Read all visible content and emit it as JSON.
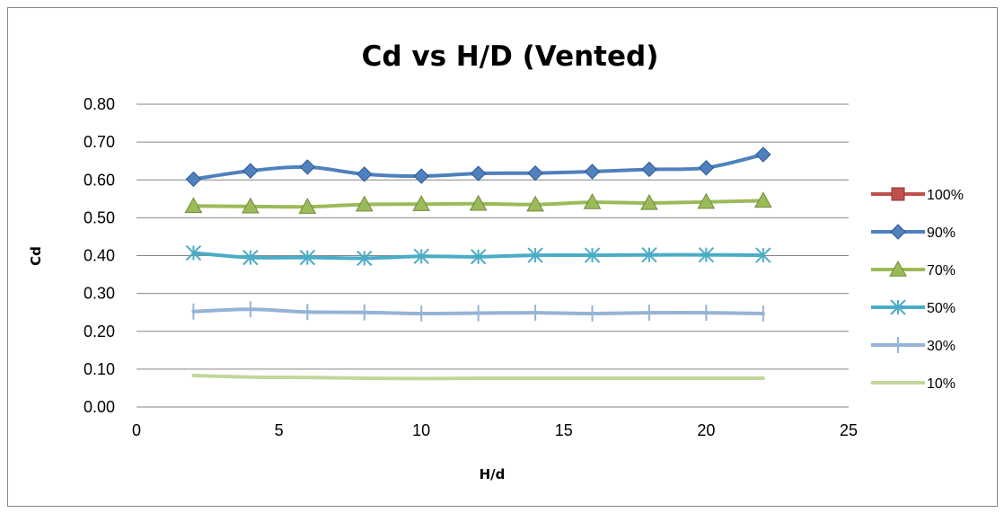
{
  "chart_data": {
    "type": "line",
    "title": "Cd vs H/D (Vented)",
    "xlabel": "H/d",
    "ylabel": "Cd",
    "xlim": [
      0,
      25
    ],
    "ylim": [
      0,
      0.8
    ],
    "xticks": [
      0,
      5,
      10,
      15,
      20,
      25
    ],
    "xtick_labels": [
      "0",
      "5",
      "10",
      "15",
      "20",
      "25"
    ],
    "yticks": [
      0,
      0.1,
      0.2,
      0.3,
      0.4,
      0.5,
      0.6,
      0.7,
      0.8
    ],
    "ytick_labels": [
      "0.00",
      "0.10",
      "0.20",
      "0.30",
      "0.40",
      "0.50",
      "0.60",
      "0.70",
      "0.80"
    ],
    "grid": "horizontal",
    "legend_position": "right",
    "series": [
      {
        "name": "100%",
        "color": "#C0504D",
        "marker": "square",
        "x": [],
        "y": []
      },
      {
        "name": "90%",
        "color": "#4F81BD",
        "marker": "diamond",
        "x": [
          2,
          4,
          6,
          8,
          10,
          12,
          14,
          16,
          18,
          20,
          22
        ],
        "y": [
          0.602,
          0.624,
          0.634,
          0.615,
          0.61,
          0.617,
          0.618,
          0.622,
          0.628,
          0.632,
          0.667
        ]
      },
      {
        "name": "70%",
        "color": "#9BBB59",
        "marker": "triangle",
        "x": [
          2,
          4,
          6,
          8,
          10,
          12,
          14,
          16,
          18,
          20,
          22
        ],
        "y": [
          0.531,
          0.53,
          0.529,
          0.535,
          0.536,
          0.537,
          0.535,
          0.541,
          0.539,
          0.542,
          0.545
        ]
      },
      {
        "name": "50%",
        "color": "#4BACC6",
        "marker": "asterisk",
        "x": [
          2,
          4,
          6,
          8,
          10,
          12,
          14,
          16,
          18,
          20,
          22
        ],
        "y": [
          0.407,
          0.395,
          0.395,
          0.393,
          0.398,
          0.397,
          0.401,
          0.401,
          0.402,
          0.402,
          0.401
        ]
      },
      {
        "name": "30%",
        "color": "#95B3D7",
        "marker": "plus",
        "x": [
          2,
          4,
          6,
          8,
          10,
          12,
          14,
          16,
          18,
          20,
          22
        ],
        "y": [
          0.252,
          0.258,
          0.251,
          0.25,
          0.247,
          0.248,
          0.249,
          0.247,
          0.249,
          0.249,
          0.247
        ]
      },
      {
        "name": "10%",
        "color": "#C3D69B",
        "marker": "none",
        "x": [
          2,
          4,
          6,
          8,
          10,
          12,
          14,
          16,
          18,
          20,
          22
        ],
        "y": [
          0.083,
          0.079,
          0.078,
          0.076,
          0.075,
          0.076,
          0.076,
          0.076,
          0.076,
          0.076,
          0.076
        ]
      }
    ]
  }
}
